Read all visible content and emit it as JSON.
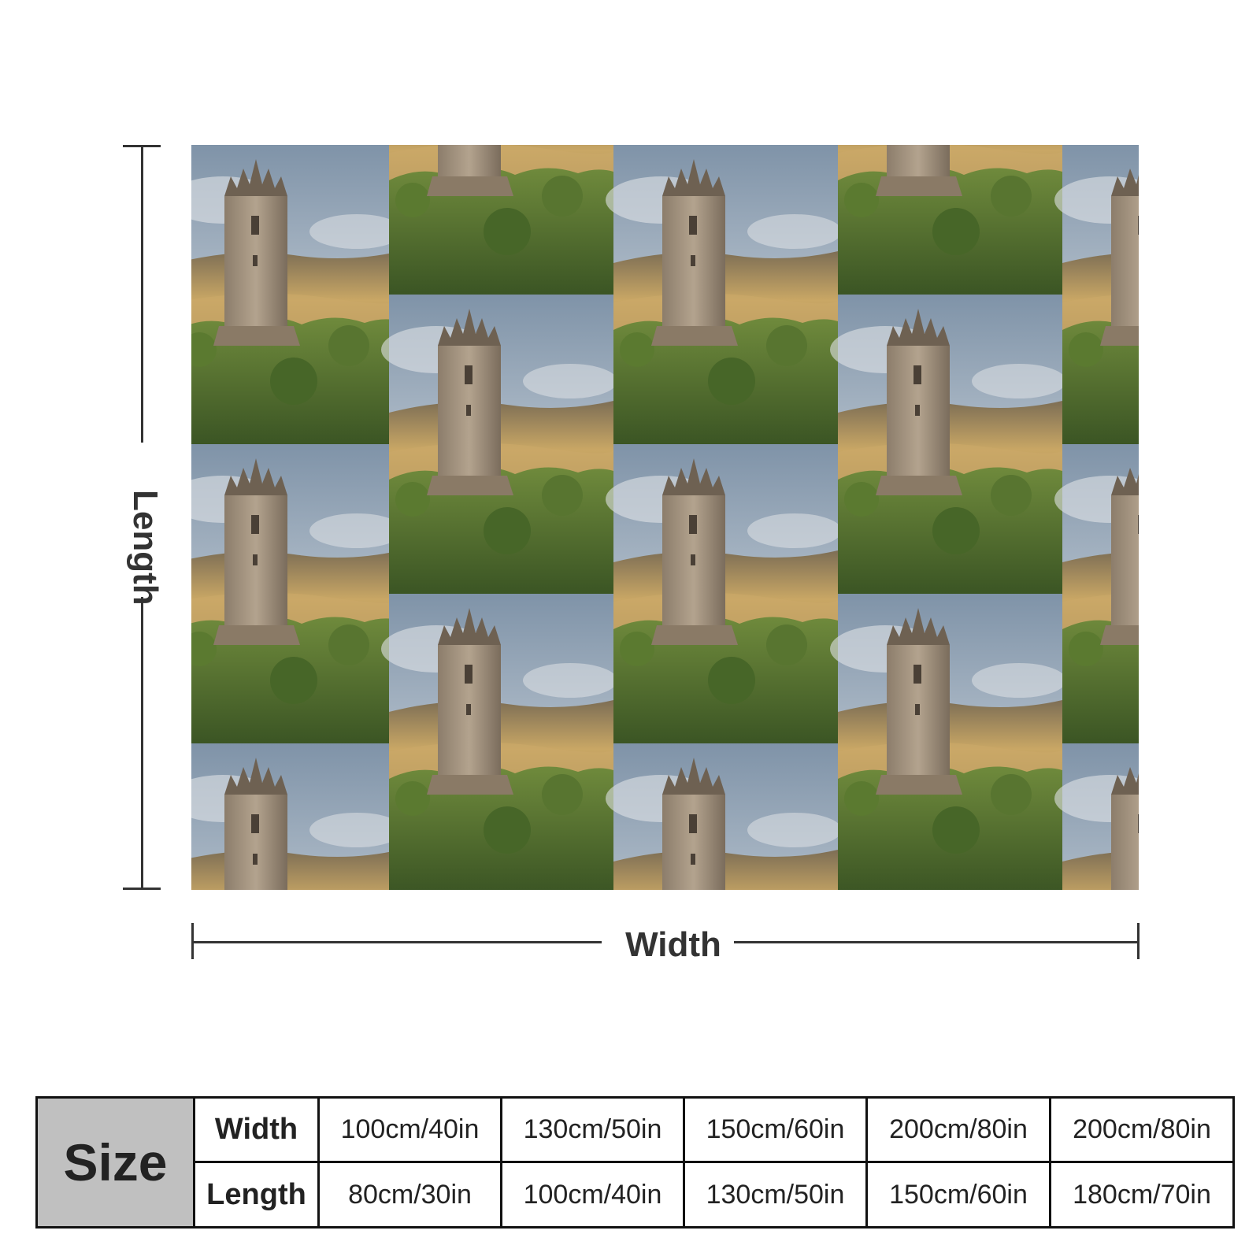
{
  "dimensions": {
    "length_label": "Length",
    "width_label": "Width"
  },
  "size_table": {
    "size_label": "Size",
    "width_header": "Width",
    "length_header": "Length",
    "widths": [
      "100cm/40in",
      "130cm/50in",
      "150cm/60in",
      "200cm/80in",
      "200cm/80in"
    ],
    "lengths": [
      "80cm/30in",
      "100cm/40in",
      "130cm/50in",
      "150cm/60in",
      "180cm/70in"
    ]
  },
  "colors": {
    "sky": "#9fb0c2",
    "hills": "#b79a63",
    "trees": "#4d6b2c",
    "tower": "#a99882",
    "table_header_bg": "#c0c0c0"
  }
}
